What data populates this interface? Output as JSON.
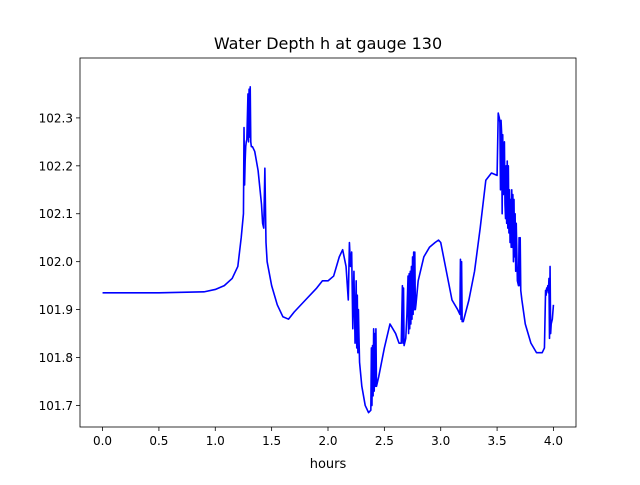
{
  "chart_data": {
    "type": "line",
    "title": "Water Depth h at gauge 130",
    "xlabel": "hours",
    "ylabel": "",
    "xlim": [
      -0.2,
      4.2
    ],
    "ylim": [
      101.655,
      102.425
    ],
    "xticks": [
      0.0,
      0.5,
      1.0,
      1.5,
      2.0,
      2.5,
      3.0,
      3.5,
      4.0
    ],
    "xtick_labels": [
      "0.0",
      "0.5",
      "1.0",
      "1.5",
      "2.0",
      "2.5",
      "3.0",
      "3.5",
      "4.0"
    ],
    "yticks": [
      101.7,
      101.8,
      101.9,
      102.0,
      102.1,
      102.2,
      102.3
    ],
    "ytick_labels": [
      "101.7",
      "101.8",
      "101.9",
      "102.0",
      "102.1",
      "102.2",
      "102.3"
    ],
    "grid": false,
    "line_color": "#0000ff",
    "series": [
      {
        "name": "",
        "x": [
          0.0,
          0.5,
          0.9,
          1.0,
          1.08,
          1.15,
          1.2,
          1.23,
          1.25,
          1.255,
          1.26,
          1.265,
          1.27,
          1.275,
          1.28,
          1.29,
          1.295,
          1.3,
          1.305,
          1.31,
          1.315,
          1.32,
          1.33,
          1.35,
          1.38,
          1.41,
          1.42,
          1.43,
          1.44,
          1.45,
          1.46,
          1.5,
          1.55,
          1.6,
          1.65,
          1.7,
          1.8,
          1.9,
          1.95,
          2.0,
          2.05,
          2.1,
          2.13,
          2.16,
          2.18,
          2.19,
          2.2,
          2.21,
          2.22,
          2.23,
          2.24,
          2.25,
          2.255,
          2.26,
          2.265,
          2.27,
          2.275,
          2.28,
          2.3,
          2.33,
          2.36,
          2.38,
          2.385,
          2.39,
          2.395,
          2.4,
          2.405,
          2.41,
          2.415,
          2.42,
          2.425,
          2.43,
          2.45,
          2.5,
          2.55,
          2.6,
          2.63,
          2.65,
          2.66,
          2.665,
          2.67,
          2.675,
          2.68,
          2.69,
          2.7,
          2.71,
          2.715,
          2.72,
          2.725,
          2.73,
          2.735,
          2.74,
          2.745,
          2.75,
          2.755,
          2.76,
          2.765,
          2.77,
          2.775,
          2.78,
          2.8,
          2.85,
          2.9,
          2.95,
          2.98,
          3.0,
          3.05,
          3.1,
          3.15,
          3.17,
          3.175,
          3.18,
          3.185,
          3.19,
          3.2,
          3.25,
          3.3,
          3.35,
          3.4,
          3.45,
          3.5,
          3.51,
          3.52,
          3.525,
          3.53,
          3.535,
          3.54,
          3.545,
          3.55,
          3.555,
          3.56,
          3.565,
          3.57,
          3.575,
          3.58,
          3.585,
          3.59,
          3.595,
          3.6,
          3.605,
          3.61,
          3.615,
          3.62,
          3.625,
          3.63,
          3.635,
          3.64,
          3.645,
          3.65,
          3.655,
          3.66,
          3.665,
          3.67,
          3.68,
          3.69,
          3.695,
          3.7,
          3.705,
          3.71,
          3.72,
          3.75,
          3.8,
          3.85,
          3.9,
          3.92,
          3.93,
          3.935,
          3.94,
          3.945,
          3.95,
          3.955,
          3.96,
          3.965,
          3.97,
          3.975,
          3.98,
          3.99,
          4.0
        ],
        "y": [
          101.935,
          101.935,
          101.937,
          101.942,
          101.95,
          101.965,
          101.99,
          102.05,
          102.1,
          102.28,
          102.16,
          102.21,
          102.24,
          102.25,
          102.255,
          102.35,
          102.25,
          102.36,
          102.26,
          102.365,
          102.25,
          102.24,
          102.24,
          102.23,
          102.19,
          102.12,
          102.08,
          102.07,
          102.195,
          102.04,
          102.0,
          101.95,
          101.91,
          101.885,
          101.88,
          101.895,
          101.92,
          101.945,
          101.96,
          101.96,
          101.97,
          102.01,
          102.025,
          101.99,
          101.92,
          102.04,
          101.99,
          102.02,
          101.86,
          101.98,
          101.83,
          101.96,
          101.82,
          101.93,
          101.81,
          101.9,
          101.84,
          101.79,
          101.74,
          101.7,
          101.685,
          101.69,
          101.82,
          101.7,
          101.825,
          101.72,
          101.86,
          101.73,
          101.85,
          101.74,
          101.86,
          101.74,
          101.76,
          101.82,
          101.87,
          101.85,
          101.83,
          101.83,
          101.95,
          101.83,
          101.945,
          101.825,
          101.83,
          101.84,
          101.89,
          101.97,
          101.85,
          101.975,
          101.86,
          101.98,
          101.87,
          101.99,
          101.88,
          102.01,
          101.89,
          102.02,
          101.9,
          102.02,
          101.9,
          101.91,
          101.96,
          102.01,
          102.03,
          102.04,
          102.045,
          102.04,
          101.98,
          101.92,
          101.9,
          101.89,
          102.005,
          101.88,
          102.0,
          101.875,
          101.875,
          101.92,
          101.98,
          102.07,
          102.17,
          102.185,
          102.18,
          102.31,
          102.3,
          102.29,
          102.15,
          102.295,
          102.27,
          102.1,
          102.265,
          102.14,
          102.15,
          102.25,
          102.12,
          102.09,
          102.2,
          102.08,
          102.21,
          102.07,
          102.2,
          102.06,
          102.15,
          102.04,
          102.13,
          102.03,
          102.15,
          102.03,
          102.14,
          102.0,
          102.13,
          102.01,
          102.1,
          101.98,
          102.08,
          101.96,
          101.95,
          102.05,
          101.95,
          102.05,
          101.94,
          101.92,
          101.87,
          101.83,
          101.81,
          101.81,
          101.82,
          101.94,
          101.93,
          101.945,
          101.94,
          101.95,
          101.935,
          101.965,
          101.84,
          101.99,
          101.85,
          101.87,
          101.88,
          101.91
        ]
      }
    ]
  }
}
